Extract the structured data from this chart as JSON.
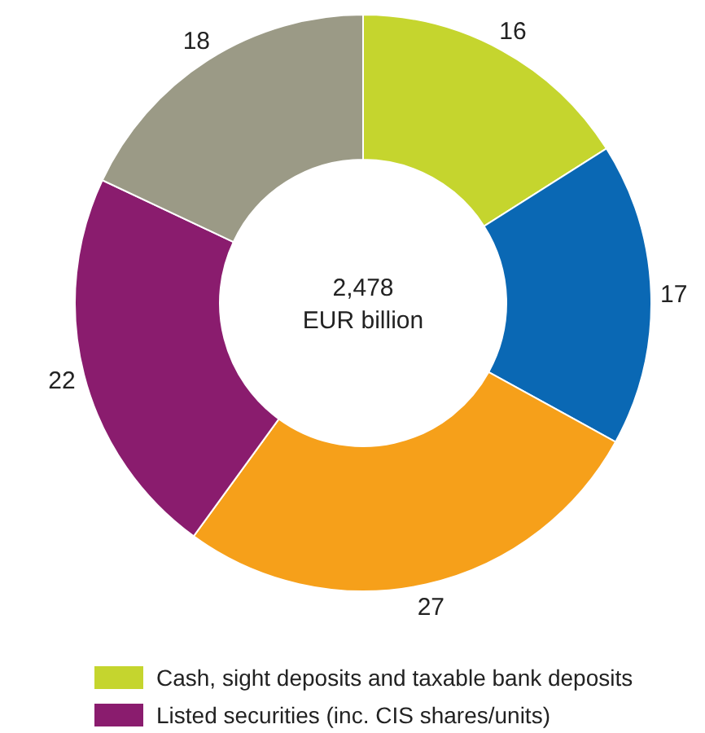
{
  "chart_data": {
    "type": "donut",
    "categories": [
      "Cash, sight deposits and taxable bank deposits",
      null,
      null,
      "Listed securities (inc. CIS shares/units)",
      null
    ],
    "values": [
      16,
      17,
      27,
      22,
      18
    ],
    "colors": [
      "#c5d52e",
      "#0a68b4",
      "#f6a01a",
      "#8a1c6e",
      "#9b9a86"
    ],
    "data_labels": true,
    "legend": "bottom",
    "annotations": [
      "2,478",
      "EUR billion"
    ]
  }
}
